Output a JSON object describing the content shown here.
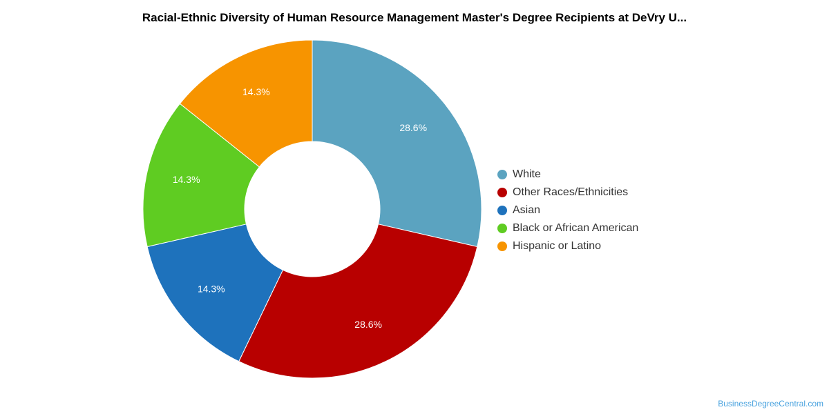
{
  "chart_data": {
    "type": "pie",
    "variant": "donut",
    "title": "Racial-Ethnic Diversity of Human Resource Management Master's Degree Recipients at DeVry U...",
    "categories": [
      "White",
      "Other Races/Ethnicities",
      "Asian",
      "Black or African American",
      "Hispanic or Latino"
    ],
    "values": [
      28.6,
      28.6,
      14.3,
      14.3,
      14.3
    ],
    "value_labels": [
      "28.6%",
      "28.6%",
      "14.3%",
      "14.3%",
      "14.3%"
    ],
    "colors": [
      "#5ba3c0",
      "#b80000",
      "#1e72bc",
      "#5fcc22",
      "#f79400"
    ],
    "start": "top",
    "direction": "clockwise",
    "legend_position": "right"
  },
  "watermark": "BusinessDegreeCentral.com"
}
